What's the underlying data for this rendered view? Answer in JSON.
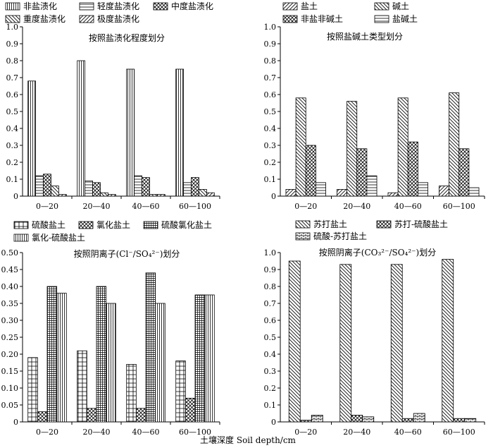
{
  "xlabel": "土壤深度 Soil depth/cm",
  "chart_data": [
    {
      "type": "bar",
      "title": "按照盐渍化程度划分",
      "categories": [
        "0—20",
        "20—40",
        "40—60",
        "60—100"
      ],
      "ylim": [
        0,
        1.0
      ],
      "yticks": [
        "0",
        "0.1",
        "0.2",
        "0.3",
        "0.4",
        "0.5",
        "0.6",
        "0.7",
        "0.8",
        "0.9",
        "1.0"
      ],
      "series": [
        {
          "name": "非盐渍化",
          "pattern": "vline",
          "values": [
            0.68,
            0.8,
            0.75,
            0.75
          ]
        },
        {
          "name": "轻度盐渍化",
          "pattern": "hline",
          "values": [
            0.12,
            0.09,
            0.12,
            0.08
          ]
        },
        {
          "name": "中度盐渍化",
          "pattern": "cross",
          "values": [
            0.13,
            0.08,
            0.11,
            0.11
          ]
        },
        {
          "name": "重度盐渍化",
          "pattern": "bdiag",
          "values": [
            0.06,
            0.02,
            0.01,
            0.04
          ]
        },
        {
          "name": "极度盐渍化",
          "pattern": "fdiag",
          "values": [
            0.01,
            0.01,
            0.01,
            0.02
          ]
        }
      ]
    },
    {
      "type": "bar",
      "title": "按照盐碱土类型划分",
      "categories": [
        "0—20",
        "20—40",
        "40—60",
        "60—100"
      ],
      "ylim": [
        0,
        1.0
      ],
      "yticks": [
        "0",
        "0.1",
        "0.2",
        "0.3",
        "0.4",
        "0.5",
        "0.6",
        "0.7",
        "0.8",
        "0.9",
        "1.0"
      ],
      "series": [
        {
          "name": "盐土",
          "pattern": "fdiag",
          "values": [
            0.04,
            0.04,
            0.02,
            0.06
          ]
        },
        {
          "name": "碱土",
          "pattern": "bdiag",
          "values": [
            0.58,
            0.56,
            0.58,
            0.61
          ]
        },
        {
          "name": "非盐非碱土",
          "pattern": "cross",
          "values": [
            0.3,
            0.28,
            0.32,
            0.28
          ]
        },
        {
          "name": "盐碱土",
          "pattern": "hline",
          "values": [
            0.08,
            0.12,
            0.08,
            0.05
          ]
        }
      ]
    },
    {
      "type": "bar",
      "title": "按照阴离子(Cl⁻/SO₄²⁻)划分",
      "categories": [
        "0—20",
        "20—40",
        "40—60",
        "60—100"
      ],
      "ylim": [
        0,
        0.5
      ],
      "yticks": [
        "0",
        "0.05",
        "0.10",
        "0.15",
        "0.20",
        "0.25",
        "0.30",
        "0.35",
        "0.40",
        "0.45",
        "0.50"
      ],
      "series": [
        {
          "name": "硫酸盐土",
          "pattern": "grid",
          "values": [
            0.19,
            0.21,
            0.17,
            0.18
          ]
        },
        {
          "name": "氯化盐土",
          "pattern": "cross",
          "values": [
            0.03,
            0.04,
            0.04,
            0.07
          ]
        },
        {
          "name": "硫酸氯化盐土",
          "pattern": "finegrid",
          "values": [
            0.4,
            0.4,
            0.44,
            0.375
          ]
        },
        {
          "name": "氯化-硫酸盐土",
          "pattern": "vline",
          "values": [
            0.38,
            0.35,
            0.35,
            0.375
          ]
        }
      ]
    },
    {
      "type": "bar",
      "title": "按照阴离子(CO₃²⁻/SO₄²⁻)划分",
      "categories": [
        "0—20",
        "20—40",
        "40—60",
        "60—100"
      ],
      "ylim": [
        0,
        1.0
      ],
      "yticks": [
        "0",
        "0.1",
        "0.2",
        "0.3",
        "0.4",
        "0.5",
        "0.6",
        "0.7",
        "0.8",
        "0.9",
        "1.0"
      ],
      "series": [
        {
          "name": "苏打盐土",
          "pattern": "bdiag",
          "values": [
            0.95,
            0.93,
            0.93,
            0.96
          ]
        },
        {
          "name": "苏打-硫酸盐土",
          "pattern": "cross",
          "values": [
            0.01,
            0.04,
            0.02,
            0.02
          ]
        },
        {
          "name": "硫酸-苏打盐土",
          "pattern": "brick",
          "values": [
            0.04,
            0.03,
            0.05,
            0.02
          ]
        }
      ]
    }
  ]
}
